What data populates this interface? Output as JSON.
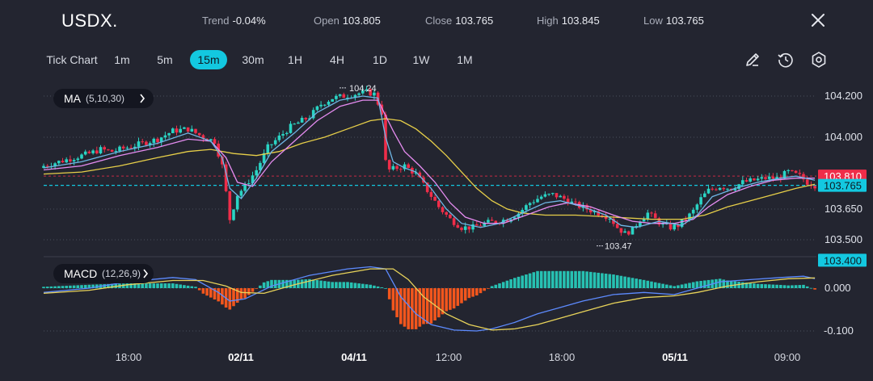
{
  "header": {
    "symbol": "USDX.",
    "stats": [
      {
        "label": "Trend",
        "value": "-0.04%"
      },
      {
        "label": "Open",
        "value": "103.805"
      },
      {
        "label": "Close",
        "value": "103.765"
      },
      {
        "label": "High",
        "value": "103.845"
      },
      {
        "label": "Low",
        "value": "103.765"
      }
    ]
  },
  "toolbar": {
    "timeframes": [
      "Tick Chart",
      "1m",
      "5m",
      "15m",
      "30m",
      "1H",
      "4H",
      "1D",
      "1W",
      "1M"
    ],
    "active": "15m",
    "tools": [
      "draw-icon",
      "history-icon",
      "settings-icon"
    ]
  },
  "indicators": {
    "ma_label": "MA",
    "ma_params": "(5,10,30)",
    "macd_label": "MACD",
    "macd_params": "(12,26,9)"
  },
  "colors": {
    "up": "#2ad4c4",
    "down": "#ef2d49",
    "accent": "#13c8e0",
    "ma5": "#6fb7e6",
    "ma10": "#e58cf0",
    "ma30": "#e7cf49",
    "hist_pos": "#27c1b2",
    "hist_neg": "#f2561d",
    "macd_line": "#5d8bff",
    "signal_line": "#e8d35a"
  },
  "chart_data": [
    {
      "type": "candlestick",
      "title": "USDX.",
      "y_ticks": [
        "104.200",
        "104.000",
        "103.650",
        "103.500"
      ],
      "ylim": [
        103.4,
        104.3
      ],
      "x_ticks": [
        "18:00",
        "02/11",
        "04/11",
        "12:00",
        "18:00",
        "05/11",
        "09:00"
      ],
      "price_labels": [
        {
          "text": "103.810",
          "value": 103.81,
          "color": "#ef2d49"
        },
        {
          "text": "103.765",
          "value": 103.765,
          "color": "#13c8e0"
        },
        {
          "text": "103.400",
          "value": 103.4,
          "color": "#13c8e0"
        }
      ],
      "annotations": [
        {
          "text": "104.24",
          "value": 104.24
        },
        {
          "text": "103.47",
          "value": 103.47
        }
      ],
      "close_path": [
        [
          0,
          103.86
        ],
        [
          4,
          103.88
        ],
        [
          8,
          103.9
        ],
        [
          12,
          103.92
        ],
        [
          15,
          103.94
        ],
        [
          18,
          103.93
        ],
        [
          22,
          103.95
        ],
        [
          26,
          103.97
        ],
        [
          30,
          103.99
        ],
        [
          34,
          104.03
        ],
        [
          38,
          104.04
        ],
        [
          42,
          104.0
        ],
        [
          45,
          103.98
        ],
        [
          47,
          103.86
        ],
        [
          49,
          103.6
        ],
        [
          51,
          103.72
        ],
        [
          53,
          103.76
        ],
        [
          56,
          103.84
        ],
        [
          59,
          103.95
        ],
        [
          62,
          104.0
        ],
        [
          65,
          104.05
        ],
        [
          68,
          104.08
        ],
        [
          70,
          104.1
        ],
        [
          73,
          104.16
        ],
        [
          76,
          104.19
        ],
        [
          79,
          104.2
        ],
        [
          82,
          104.21
        ],
        [
          85,
          104.22
        ],
        [
          87,
          104.21
        ],
        [
          89,
          104.12
        ],
        [
          90,
          103.88
        ],
        [
          91,
          103.84
        ],
        [
          93,
          103.85
        ],
        [
          95,
          103.86
        ],
        [
          98,
          103.82
        ],
        [
          101,
          103.74
        ],
        [
          104,
          103.66
        ],
        [
          107,
          103.6
        ],
        [
          110,
          103.56
        ],
        [
          113,
          103.56
        ],
        [
          116,
          103.58
        ],
        [
          119,
          103.59
        ],
        [
          122,
          103.6
        ],
        [
          125,
          103.63
        ],
        [
          128,
          103.68
        ],
        [
          131,
          103.71
        ],
        [
          134,
          103.72
        ],
        [
          137,
          103.7
        ],
        [
          140,
          103.67
        ],
        [
          143,
          103.65
        ],
        [
          146,
          103.63
        ],
        [
          149,
          103.61
        ],
        [
          151,
          103.56
        ],
        [
          153,
          103.53
        ],
        [
          155,
          103.55
        ],
        [
          157,
          103.6
        ],
        [
          159,
          103.63
        ],
        [
          161,
          103.6
        ],
        [
          163,
          103.57
        ],
        [
          165,
          103.56
        ],
        [
          167,
          103.57
        ],
        [
          169,
          103.6
        ],
        [
          171,
          103.64
        ],
        [
          173,
          103.7
        ],
        [
          175,
          103.74
        ],
        [
          178,
          103.76
        ],
        [
          181,
          103.75
        ],
        [
          184,
          103.78
        ],
        [
          187,
          103.79
        ],
        [
          190,
          103.8
        ],
        [
          193,
          103.8
        ],
        [
          196,
          103.83
        ],
        [
          199,
          103.81
        ],
        [
          201,
          103.78
        ],
        [
          203,
          103.765
        ]
      ],
      "ma5_path": [
        [
          0,
          103.85
        ],
        [
          10,
          103.88
        ],
        [
          20,
          103.93
        ],
        [
          30,
          103.97
        ],
        [
          38,
          104.02
        ],
        [
          44,
          103.98
        ],
        [
          47,
          103.9
        ],
        [
          49,
          103.75
        ],
        [
          52,
          103.7
        ],
        [
          56,
          103.8
        ],
        [
          60,
          103.93
        ],
        [
          66,
          104.02
        ],
        [
          72,
          104.12
        ],
        [
          78,
          104.18
        ],
        [
          84,
          104.2
        ],
        [
          88,
          104.19
        ],
        [
          90,
          104.0
        ],
        [
          92,
          103.88
        ],
        [
          95,
          103.85
        ],
        [
          98,
          103.83
        ],
        [
          102,
          103.75
        ],
        [
          106,
          103.65
        ],
        [
          110,
          103.58
        ],
        [
          115,
          103.56
        ],
        [
          120,
          103.58
        ],
        [
          126,
          103.63
        ],
        [
          132,
          103.68
        ],
        [
          136,
          103.69
        ],
        [
          142,
          103.66
        ],
        [
          148,
          103.62
        ],
        [
          152,
          103.57
        ],
        [
          156,
          103.56
        ],
        [
          162,
          103.59
        ],
        [
          168,
          103.57
        ],
        [
          172,
          103.62
        ],
        [
          176,
          103.71
        ],
        [
          182,
          103.75
        ],
        [
          188,
          103.78
        ],
        [
          194,
          103.8
        ],
        [
          198,
          103.81
        ],
        [
          203,
          103.79
        ]
      ],
      "ma10_path": [
        [
          0,
          103.84
        ],
        [
          10,
          103.86
        ],
        [
          20,
          103.91
        ],
        [
          30,
          103.95
        ],
        [
          38,
          103.99
        ],
        [
          44,
          103.98
        ],
        [
          48,
          103.9
        ],
        [
          51,
          103.78
        ],
        [
          55,
          103.76
        ],
        [
          60,
          103.88
        ],
        [
          66,
          103.98
        ],
        [
          72,
          104.08
        ],
        [
          78,
          104.15
        ],
        [
          84,
          104.18
        ],
        [
          88,
          104.18
        ],
        [
          92,
          104.03
        ],
        [
          95,
          103.93
        ],
        [
          99,
          103.86
        ],
        [
          103,
          103.78
        ],
        [
          107,
          103.68
        ],
        [
          111,
          103.61
        ],
        [
          116,
          103.58
        ],
        [
          121,
          103.58
        ],
        [
          127,
          103.62
        ],
        [
          133,
          103.66
        ],
        [
          138,
          103.68
        ],
        [
          144,
          103.66
        ],
        [
          150,
          103.62
        ],
        [
          155,
          103.59
        ],
        [
          160,
          103.58
        ],
        [
          166,
          103.58
        ],
        [
          171,
          103.6
        ],
        [
          175,
          103.66
        ],
        [
          180,
          103.72
        ],
        [
          186,
          103.76
        ],
        [
          192,
          103.79
        ],
        [
          198,
          103.8
        ],
        [
          203,
          103.8
        ]
      ],
      "ma30_path": [
        [
          0,
          103.82
        ],
        [
          10,
          103.83
        ],
        [
          20,
          103.86
        ],
        [
          30,
          103.9
        ],
        [
          38,
          103.93
        ],
        [
          44,
          103.94
        ],
        [
          50,
          103.92
        ],
        [
          56,
          103.91
        ],
        [
          62,
          103.93
        ],
        [
          68,
          103.97
        ],
        [
          74,
          104.0
        ],
        [
          80,
          104.04
        ],
        [
          86,
          104.08
        ],
        [
          90,
          104.09
        ],
        [
          94,
          104.08
        ],
        [
          98,
          104.04
        ],
        [
          102,
          103.98
        ],
        [
          106,
          103.91
        ],
        [
          110,
          103.83
        ],
        [
          114,
          103.75
        ],
        [
          118,
          103.69
        ],
        [
          122,
          103.65
        ],
        [
          126,
          103.63
        ],
        [
          132,
          103.62
        ],
        [
          140,
          103.62
        ],
        [
          150,
          103.61
        ],
        [
          160,
          103.6
        ],
        [
          168,
          103.6
        ],
        [
          174,
          103.62
        ],
        [
          180,
          103.66
        ],
        [
          186,
          103.69
        ],
        [
          192,
          103.72
        ],
        [
          198,
          103.75
        ],
        [
          203,
          103.77
        ]
      ]
    },
    {
      "type": "bar+line",
      "title": "MACD",
      "y_ticks": [
        "0.000",
        "-0.100"
      ],
      "ylim": [
        -0.125,
        0.075
      ],
      "macd_path": [
        [
          0,
          -0.01
        ],
        [
          12,
          0.0
        ],
        [
          22,
          0.015
        ],
        [
          34,
          0.025
        ],
        [
          40,
          0.02
        ],
        [
          46,
          -0.01
        ],
        [
          49,
          -0.03
        ],
        [
          53,
          -0.025
        ],
        [
          60,
          0.005
        ],
        [
          70,
          0.03
        ],
        [
          80,
          0.045
        ],
        [
          86,
          0.05
        ],
        [
          90,
          0.045
        ],
        [
          94,
          -0.02
        ],
        [
          98,
          -0.06
        ],
        [
          102,
          -0.085
        ],
        [
          108,
          -0.098
        ],
        [
          114,
          -0.1
        ],
        [
          118,
          -0.095
        ],
        [
          124,
          -0.08
        ],
        [
          130,
          -0.06
        ],
        [
          136,
          -0.045
        ],
        [
          142,
          -0.03
        ],
        [
          150,
          -0.015
        ],
        [
          158,
          -0.01
        ],
        [
          166,
          -0.015
        ],
        [
          172,
          0.0
        ],
        [
          178,
          0.015
        ],
        [
          186,
          0.02
        ],
        [
          194,
          0.025
        ],
        [
          200,
          0.028
        ],
        [
          203,
          0.022
        ]
      ],
      "signal_path": [
        [
          0,
          -0.012
        ],
        [
          12,
          -0.005
        ],
        [
          22,
          0.008
        ],
        [
          34,
          0.018
        ],
        [
          42,
          0.018
        ],
        [
          48,
          0.005
        ],
        [
          52,
          -0.01
        ],
        [
          58,
          -0.012
        ],
        [
          66,
          0.008
        ],
        [
          76,
          0.03
        ],
        [
          86,
          0.045
        ],
        [
          92,
          0.045
        ],
        [
          96,
          0.02
        ],
        [
          100,
          -0.02
        ],
        [
          106,
          -0.06
        ],
        [
          112,
          -0.085
        ],
        [
          118,
          -0.098
        ],
        [
          124,
          -0.095
        ],
        [
          130,
          -0.085
        ],
        [
          136,
          -0.07
        ],
        [
          142,
          -0.055
        ],
        [
          150,
          -0.035
        ],
        [
          158,
          -0.022
        ],
        [
          166,
          -0.018
        ],
        [
          172,
          -0.01
        ],
        [
          180,
          0.005
        ],
        [
          188,
          0.015
        ],
        [
          196,
          0.022
        ],
        [
          203,
          0.024
        ]
      ]
    }
  ]
}
